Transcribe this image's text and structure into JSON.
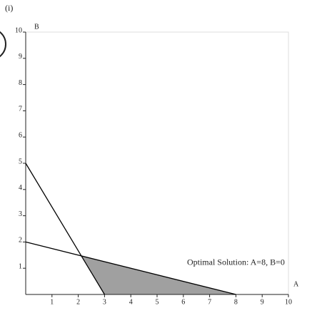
{
  "chart_data": {
    "type": "line",
    "title": "(i)",
    "x_label": "A",
    "y_label": "B",
    "xlim": [
      0,
      10
    ],
    "ylim": [
      0,
      10
    ],
    "xticks": [
      1,
      2,
      3,
      4,
      5,
      6,
      7,
      8,
      9,
      10
    ],
    "yticks": [
      1,
      2,
      3,
      4,
      5,
      6,
      7,
      8,
      9,
      10
    ],
    "series": [
      {
        "color": "#000000",
        "x": [
          0,
          3
        ],
        "values": [
          5,
          0
        ]
      },
      {
        "color": "#000000",
        "x": [
          0,
          8
        ],
        "values": [
          2,
          0
        ]
      }
    ],
    "region": {
      "color": "#a0a0a0",
      "x": [
        2.12,
        3,
        8
      ],
      "values": [
        1.47,
        0,
        0
      ]
    },
    "annotation": {
      "text": "Optimal Solution: A=8, B=0",
      "x": 8,
      "y": 1.2
    }
  }
}
